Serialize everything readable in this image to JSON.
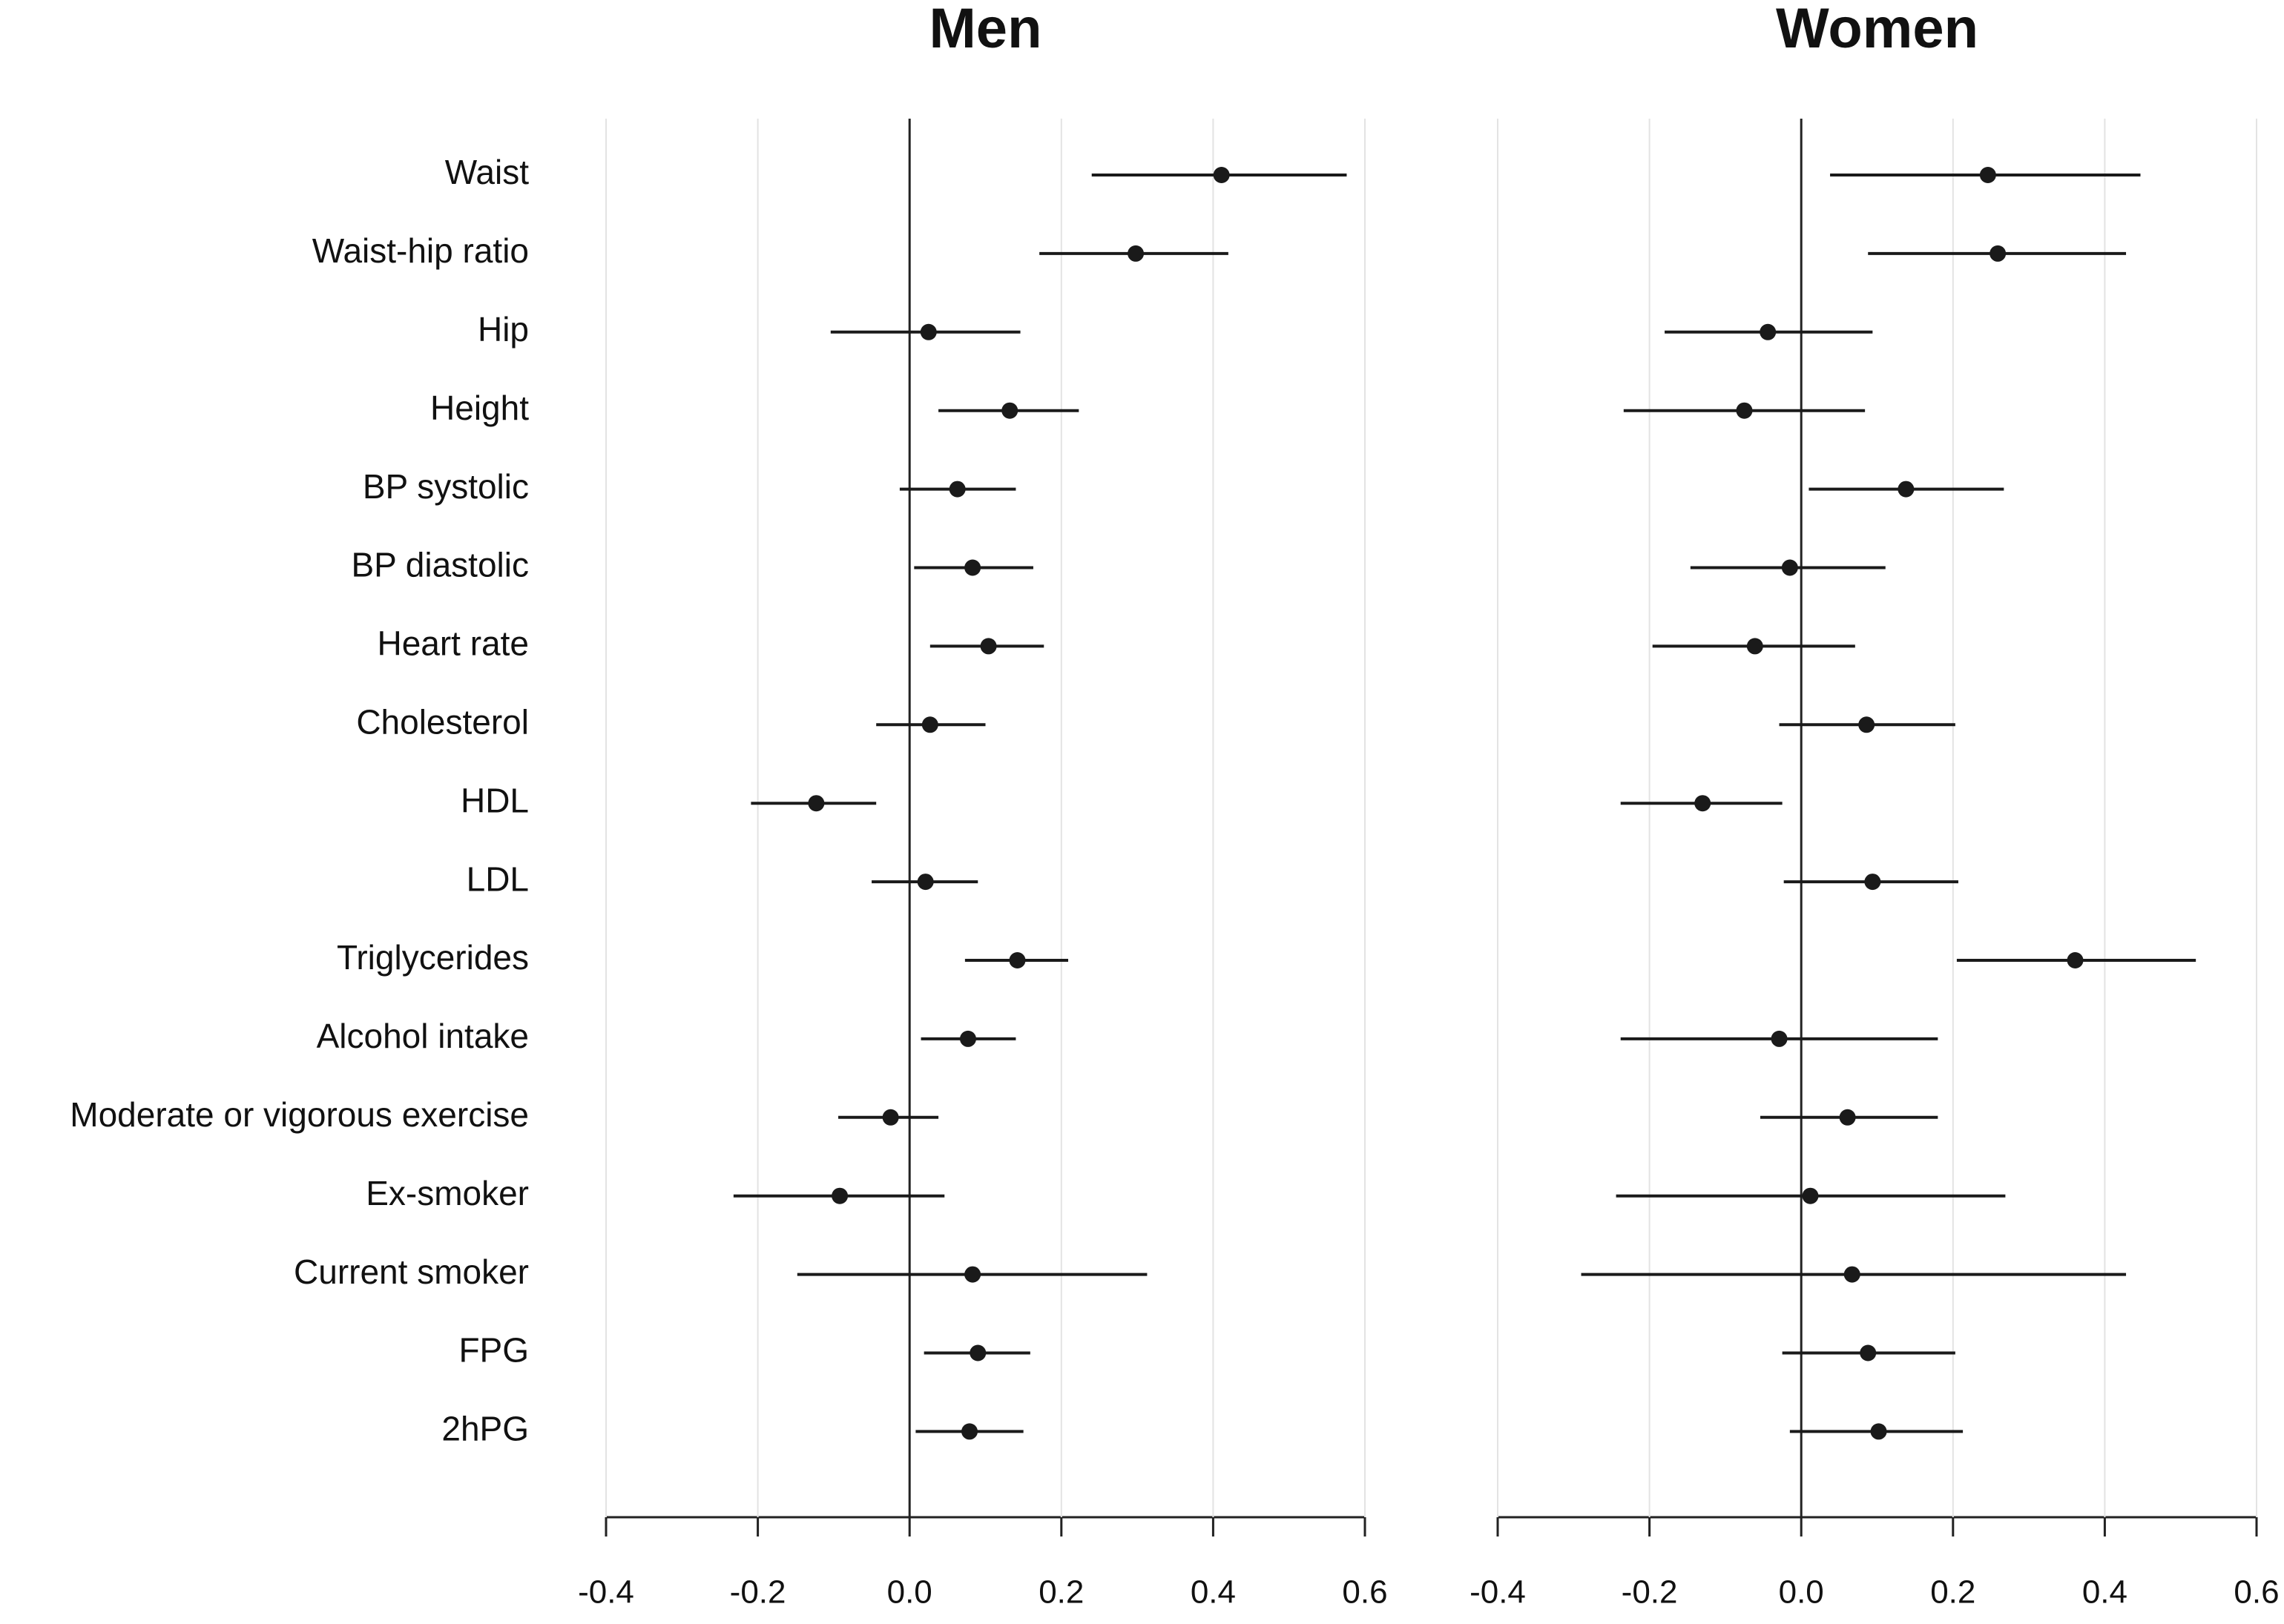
{
  "chart_data": [
    {
      "type": "forest",
      "title": "Men",
      "color": "#1a1a1a",
      "grid": true,
      "categories": [
        "Waist",
        "Waist-hip ratio",
        "Hip",
        "Height",
        "BP systolic",
        "BP diastolic",
        "Heart rate",
        "Cholesterol",
        "HDL",
        "LDL",
        "Triglycerides",
        "Alcohol intake",
        "Moderate or vigorous exercise",
        "Ex-smoker",
        "Current smoker",
        "FPG",
        "2hPG"
      ],
      "values": [
        0.411,
        0.298,
        0.025,
        0.132,
        0.063,
        0.083,
        0.104,
        0.027,
        -0.123,
        0.021,
        0.142,
        0.077,
        -0.025,
        -0.092,
        0.083,
        0.09,
        0.079
      ],
      "lower": [
        0.24,
        0.171,
        -0.104,
        0.038,
        -0.013,
        0.006,
        0.027,
        -0.044,
        -0.209,
        -0.05,
        0.073,
        0.015,
        -0.094,
        -0.232,
        -0.148,
        0.019,
        0.008
      ],
      "upper": [
        0.576,
        0.42,
        0.146,
        0.223,
        0.14,
        0.163,
        0.177,
        0.1,
        -0.044,
        0.09,
        0.209,
        0.14,
        0.038,
        0.046,
        0.313,
        0.159,
        0.15
      ],
      "xlim": [
        -0.4,
        0.6
      ],
      "xticks": [
        -0.4,
        -0.2,
        {
          "value": 0,
          "label": "0.0"
        },
        0.2,
        0.4,
        0.6
      ]
    },
    {
      "type": "forest",
      "title": "Women",
      "color": "#1a1a1a",
      "grid": true,
      "values": [
        0.246,
        0.259,
        -0.044,
        -0.075,
        0.138,
        -0.015,
        -0.061,
        0.086,
        -0.13,
        0.094,
        0.361,
        -0.029,
        0.061,
        0.012,
        0.067,
        0.088,
        0.102
      ],
      "lower": [
        0.038,
        0.088,
        -0.18,
        -0.234,
        0.01,
        -0.146,
        -0.196,
        -0.029,
        -0.238,
        -0.023,
        0.205,
        -0.238,
        -0.054,
        -0.244,
        -0.29,
        -0.025,
        -0.015
      ],
      "upper": [
        0.447,
        0.428,
        0.094,
        0.084,
        0.267,
        0.111,
        0.071,
        0.203,
        -0.025,
        0.207,
        0.52,
        0.18,
        0.18,
        0.269,
        0.428,
        0.203,
        0.213
      ],
      "xlim": [
        -0.4,
        0.6
      ],
      "xticks": [
        -0.4,
        -0.2,
        {
          "value": 0,
          "label": "0.0"
        },
        0.2,
        0.4,
        0.6
      ]
    }
  ]
}
